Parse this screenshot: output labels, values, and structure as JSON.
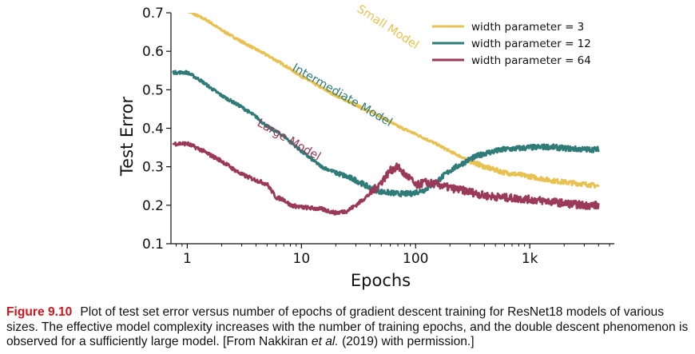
{
  "chart_data": {
    "type": "line",
    "xlabel": "Epochs",
    "ylabel": "Test Error",
    "xscale": "log",
    "xlim": [
      0.72,
      5500
    ],
    "ylim": [
      0.1,
      0.7
    ],
    "xticks": [
      {
        "value": 1,
        "label": "1"
      },
      {
        "value": 10,
        "label": "10"
      },
      {
        "value": 100,
        "label": "100"
      },
      {
        "value": 1000,
        "label": "1k"
      }
    ],
    "yticks": [
      {
        "value": 0.1,
        "label": "0.1"
      },
      {
        "value": 0.2,
        "label": "0.2"
      },
      {
        "value": 0.3,
        "label": "0.3"
      },
      {
        "value": 0.4,
        "label": "0.4"
      },
      {
        "value": 0.5,
        "label": "0.5"
      },
      {
        "value": 0.6,
        "label": "0.6"
      },
      {
        "value": 0.7,
        "label": "0.7"
      }
    ],
    "legend_position": "top-right",
    "series": [
      {
        "name": "width parameter = 3",
        "label": "Small Model",
        "color": "#e9c150",
        "x": [
          1,
          1.5,
          2,
          3,
          4,
          5,
          7,
          10,
          15,
          20,
          30,
          50,
          70,
          100,
          150,
          200,
          300,
          400,
          600,
          1000,
          1500,
          2000,
          3000,
          4000
        ],
        "y": [
          0.705,
          0.68,
          0.655,
          0.625,
          0.605,
          0.59,
          0.565,
          0.535,
          0.505,
          0.485,
          0.46,
          0.43,
          0.405,
          0.385,
          0.36,
          0.34,
          0.315,
          0.3,
          0.285,
          0.275,
          0.265,
          0.26,
          0.255,
          0.25
        ]
      },
      {
        "name": "width parameter = 12",
        "label": "Intermediate Model",
        "color": "#2e7b78",
        "x": [
          0.75,
          1,
          1.3,
          1.6,
          2,
          3,
          4,
          5,
          7,
          10,
          15,
          20,
          30,
          40,
          50,
          70,
          90,
          120,
          150,
          200,
          300,
          400,
          600,
          1000,
          1500,
          2000,
          3000,
          4000
        ],
        "y": [
          0.545,
          0.545,
          0.525,
          0.505,
          0.485,
          0.455,
          0.43,
          0.405,
          0.38,
          0.34,
          0.3,
          0.285,
          0.265,
          0.245,
          0.235,
          0.23,
          0.23,
          0.24,
          0.26,
          0.29,
          0.32,
          0.335,
          0.345,
          0.35,
          0.352,
          0.348,
          0.345,
          0.345
        ]
      },
      {
        "name": "width parameter = 64",
        "label": "Large Model",
        "color": "#9b3a58",
        "x": [
          0.75,
          1,
          1.3,
          1.6,
          2,
          2.5,
          3,
          4,
          5,
          6,
          7,
          8,
          10,
          15,
          20,
          25,
          30,
          40,
          50,
          60,
          70,
          80,
          90,
          100,
          120,
          150,
          200,
          300,
          400,
          600,
          1000,
          1500,
          2000,
          3000,
          4000
        ],
        "y": [
          0.36,
          0.36,
          0.345,
          0.33,
          0.315,
          0.295,
          0.28,
          0.265,
          0.255,
          0.22,
          0.215,
          0.2,
          0.195,
          0.19,
          0.18,
          0.185,
          0.2,
          0.23,
          0.26,
          0.29,
          0.3,
          0.28,
          0.27,
          0.25,
          0.26,
          0.255,
          0.245,
          0.235,
          0.225,
          0.22,
          0.215,
          0.21,
          0.205,
          0.2,
          0.2
        ]
      }
    ]
  },
  "caption": {
    "label": "Figure 9.10",
    "part1": "Plot of test set error versus number of epochs of gradient descent training for ResNet18 models of various sizes. The effective model complexity increases with the number of training epochs, and the double descent phenomenon is observed for a sufficiently large model. [From Nakkiran ",
    "italic": "et al.",
    "part2": " (2019) with permission.]"
  }
}
